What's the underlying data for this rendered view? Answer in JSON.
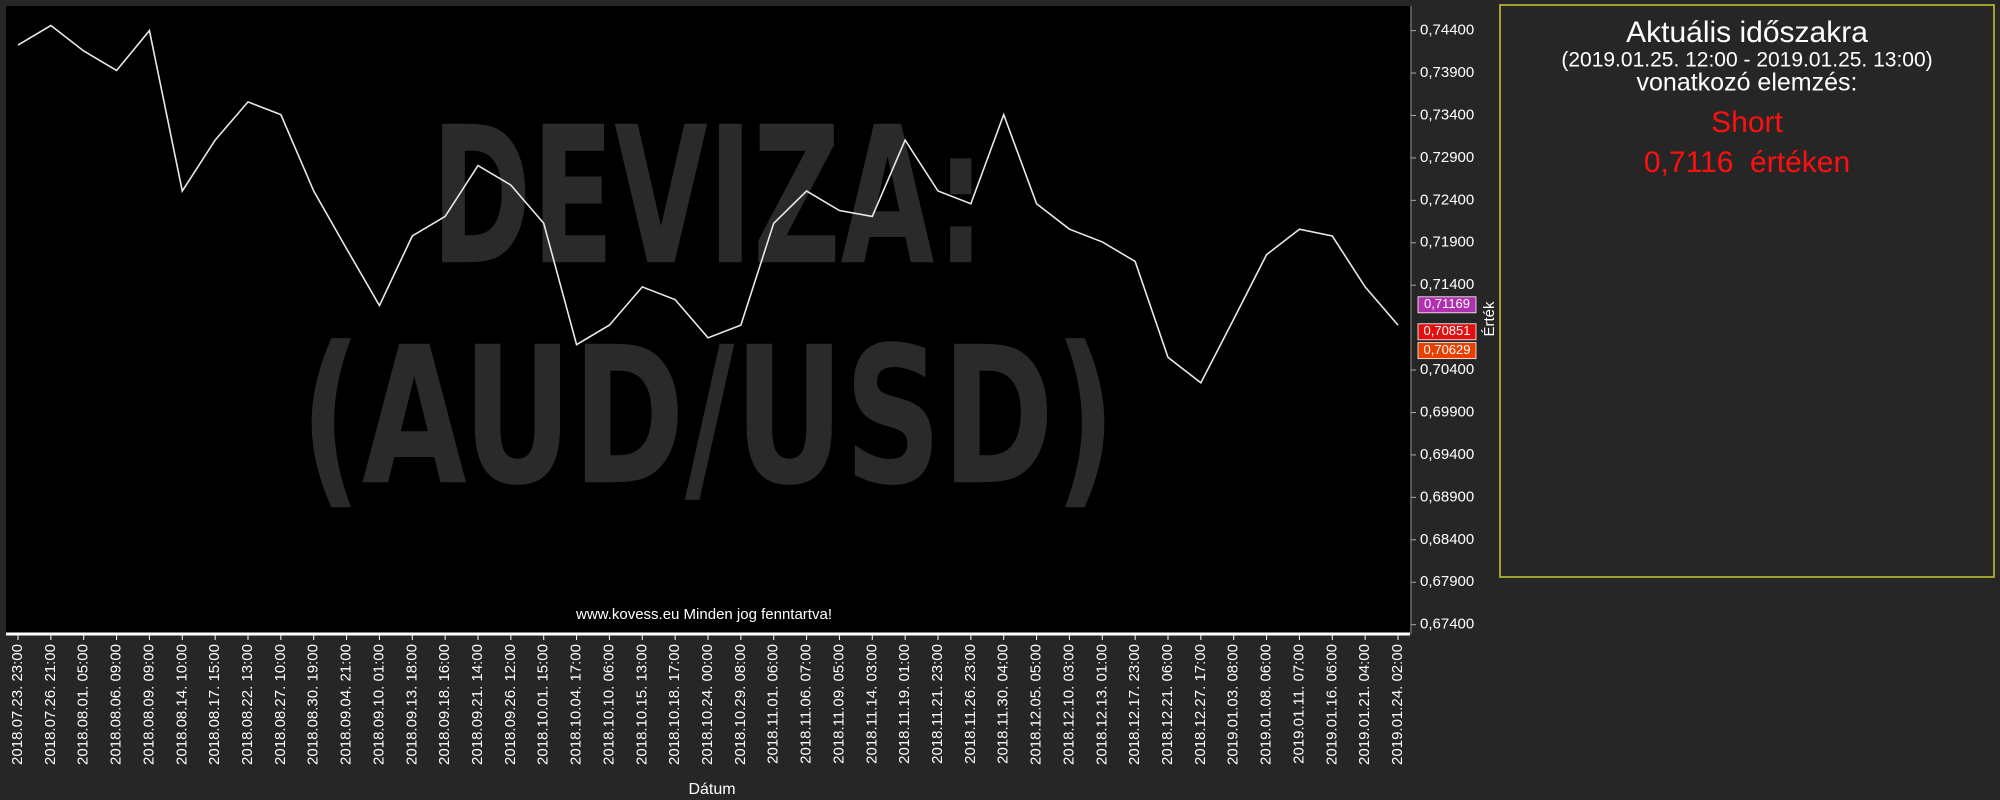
{
  "chart_data": {
    "type": "line",
    "watermark": [
      "DEVIZA:",
      "(AUD/USD)"
    ],
    "footer": "www.kovess.eu Minden jog fenntartva!",
    "x_label": "Dátum",
    "y_label": "Érték",
    "categories": [
      "2018.07.23. 23:00",
      "2018.07.26. 21:00",
      "2018.08.01. 05:00",
      "2018.08.06. 09:00",
      "2018.08.09. 09:00",
      "2018.08.14. 10:00",
      "2018.08.17. 15:00",
      "2018.08.22. 13:00",
      "2018.08.27. 10:00",
      "2018.08.30. 19:00",
      "2018.09.04. 21:00",
      "2018.09.10. 01:00",
      "2018.09.13. 18:00",
      "2018.09.18. 16:00",
      "2018.09.21. 14:00",
      "2018.09.26. 12:00",
      "2018.10.01. 15:00",
      "2018.10.04. 17:00",
      "2018.10.10. 06:00",
      "2018.10.15. 13:00",
      "2018.10.18. 17:00",
      "2018.10.24. 00:00",
      "2018.10.29. 08:00",
      "2018.11.01. 06:00",
      "2018.11.06. 07:00",
      "2018.11.09. 05:00",
      "2018.11.14. 03:00",
      "2018.11.19. 01:00",
      "2018.11.21. 23:00",
      "2018.11.26. 23:00",
      "2018.11.30. 04:00",
      "2018.12.05. 05:00",
      "2018.12.10. 03:00",
      "2018.12.13. 01:00",
      "2018.12.17. 23:00",
      "2018.12.21. 06:00",
      "2018.12.27. 17:00",
      "2019.01.03. 08:00",
      "2019.01.08. 06:00",
      "2019.01.11. 07:00",
      "2019.01.16. 06:00",
      "2019.01.21. 04:00",
      "2019.01.24. 02:00"
    ],
    "values": [
      0.7423,
      0.7446,
      0.7416,
      0.7393,
      0.744,
      0.7251,
      0.7311,
      0.7356,
      0.7341,
      0.7251,
      0.7183,
      0.7116,
      0.7198,
      0.7221,
      0.7281,
      0.7258,
      0.7213,
      0.707,
      0.7093,
      0.7138,
      0.7123,
      0.7078,
      0.7093,
      0.7213,
      0.7251,
      0.7228,
      0.7221,
      0.7311,
      0.7251,
      0.7236,
      0.7341,
      0.7236,
      0.7206,
      0.7191,
      0.7168,
      0.7055,
      0.7025,
      0.71,
      0.7176,
      0.7206,
      0.7198,
      0.7138,
      0.7093
    ],
    "color": "#e8e8e8",
    "ylim": [
      0.6729,
      0.7469
    ],
    "yticks": [
      {
        "value": 0.744,
        "label": "0,74400"
      },
      {
        "value": 0.739,
        "label": "0,73900"
      },
      {
        "value": 0.734,
        "label": "0,73400"
      },
      {
        "value": 0.729,
        "label": "0,72900"
      },
      {
        "value": 0.724,
        "label": "0,72400"
      },
      {
        "value": 0.719,
        "label": "0,71900"
      },
      {
        "value": 0.714,
        "label": "0,71400"
      },
      {
        "value": 0.704,
        "label": "0,70400"
      },
      {
        "value": 0.699,
        "label": "0,69900"
      },
      {
        "value": 0.694,
        "label": "0,69400"
      },
      {
        "value": 0.689,
        "label": "0,68900"
      },
      {
        "value": 0.684,
        "label": "0,68400"
      },
      {
        "value": 0.679,
        "label": "0,67900"
      },
      {
        "value": 0.674,
        "label": "0,67400"
      }
    ],
    "price_tags": [
      {
        "value": 0.71169,
        "label": "0,71169",
        "color": "#b030b0"
      },
      {
        "value": 0.70851,
        "label": "0,70851",
        "color": "#e01010"
      },
      {
        "value": 0.70629,
        "label": "0,70629",
        "color": "#e84000"
      }
    ],
    "grid": false
  },
  "panel": {
    "title": "Aktuális időszakra",
    "period": "(2019.01.25. 12:00 - 2019.01.25. 13:00)",
    "subtitle": "vonatkozó elemzés:",
    "signal": "Short",
    "price_text": "0,7116  értéken"
  }
}
